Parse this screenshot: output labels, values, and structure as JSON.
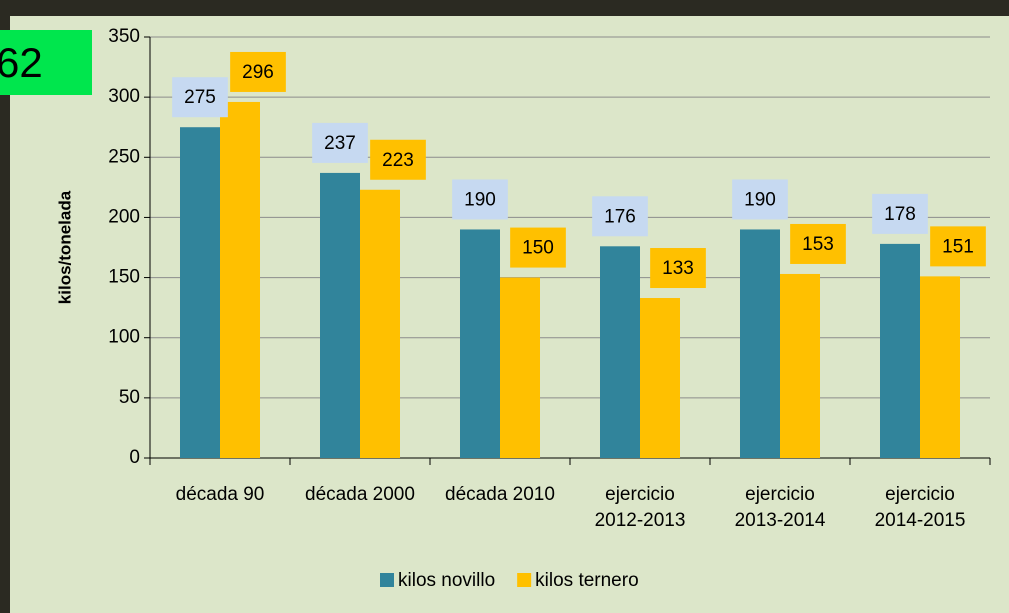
{
  "badge": "62",
  "chart_data": {
    "type": "bar",
    "y_label": "kilos/tonelada",
    "categories": [
      "década 90",
      "década 2000",
      "década 2010",
      "ejercicio\n2012-2013",
      "ejercicio\n2013-2014",
      "ejercicio\n2014-2015"
    ],
    "series": [
      {
        "name": "kilos novillo",
        "color": "#31849b",
        "label_color": "#c6d9f1",
        "values": [
          275,
          237,
          190,
          176,
          190,
          178
        ]
      },
      {
        "name": "kilos ternero",
        "color": "#ffc000",
        "label_color": "#ffc000",
        "values": [
          296,
          223,
          150,
          133,
          153,
          151
        ]
      }
    ],
    "ylim": [
      0,
      350
    ],
    "yticks": [
      0,
      50,
      100,
      150,
      200,
      250,
      300,
      350
    ],
    "grid": true,
    "legend": "bottom"
  }
}
